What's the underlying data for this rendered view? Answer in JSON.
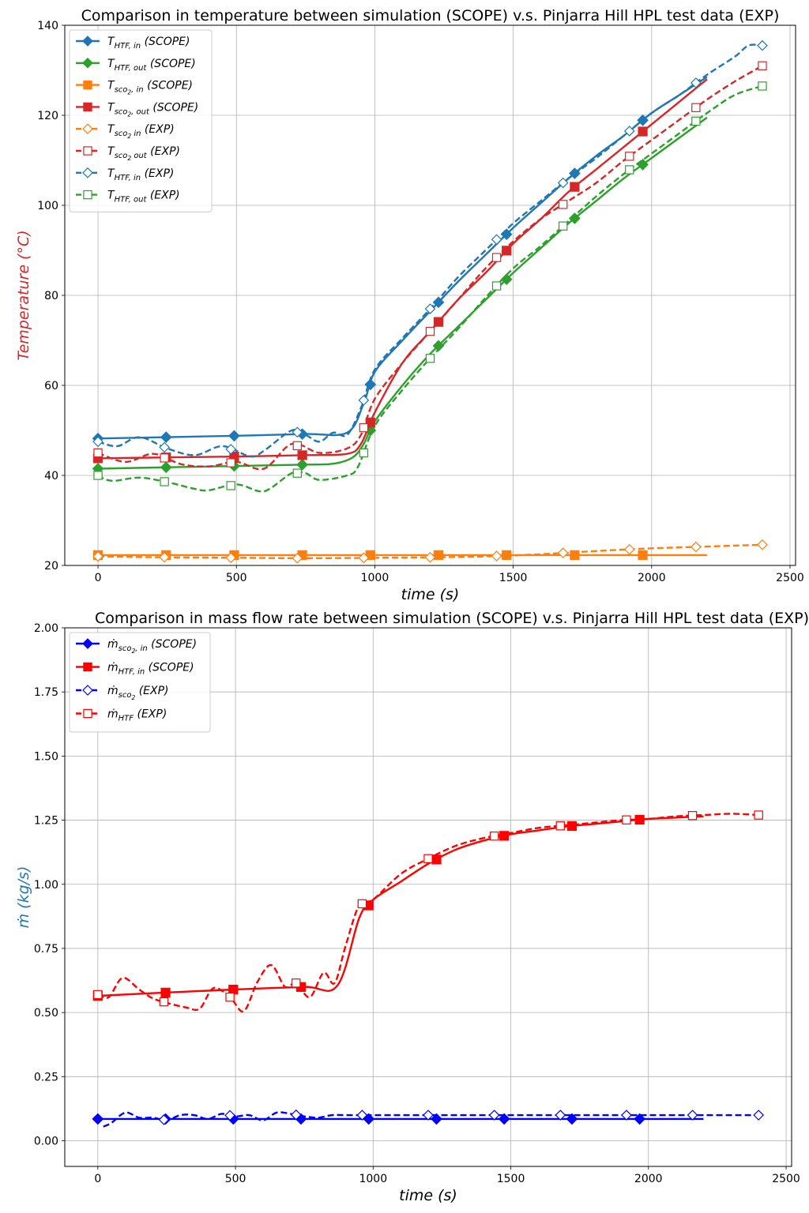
{
  "chart_data": [
    {
      "type": "line",
      "title": "Comparison in temperature between simulation (SCOPE) v.s. Pinjarra Hill HPL test data (EXP)",
      "xlabel": "time (s)",
      "ylabel": "Temperature (°C)",
      "xlim": [
        -120,
        2520
      ],
      "ylim": [
        20,
        140
      ],
      "xticks": [
        0,
        500,
        1000,
        1500,
        2000,
        2500
      ],
      "yticks": [
        20,
        40,
        60,
        80,
        100,
        120,
        140
      ],
      "grid": true,
      "legend_position": "upper-left",
      "series": [
        {
          "name": "T_HTF, in (SCOPE)",
          "label_main": "T",
          "label_sub": "HTF, in",
          "label_tail": " (SCOPE)",
          "color": "#1f77b4",
          "style": "solid",
          "marker": "diamond",
          "filled": true,
          "x": [
            0,
            250,
            500,
            750,
            900,
            960,
            1000,
            1100,
            1200,
            1300,
            1400,
            1500,
            1600,
            1700,
            1800,
            1900,
            2000,
            2100,
            2200
          ],
          "y": [
            48.2,
            48.5,
            48.8,
            49.2,
            49.5,
            56,
            63,
            70,
            76.5,
            83,
            89,
            95,
            100.5,
            106,
            111,
            115.5,
            120.5,
            124.5,
            128.5
          ]
        },
        {
          "name": "T_HTF, out (SCOPE)",
          "label_main": "T",
          "label_sub": "HTF, out",
          "label_tail": " (SCOPE)",
          "color": "#2ca02c",
          "style": "solid",
          "marker": "diamond",
          "filled": true,
          "x": [
            0,
            250,
            500,
            750,
            850,
            920,
            960,
            1000,
            1100,
            1200,
            1300,
            1400,
            1500,
            1600,
            1700,
            1800,
            1900,
            2000,
            2100,
            2200
          ],
          "y": [
            41.5,
            41.8,
            42.1,
            42.4,
            42.6,
            44,
            47,
            52,
            60,
            67,
            73,
            79,
            85,
            90.5,
            96,
            101,
            106,
            110.5,
            115,
            119.5
          ]
        },
        {
          "name": "T_sco2, in (SCOPE)",
          "label_main": "T",
          "label_sub": "sco",
          "label_subsub": "2",
          "label_sub2": ", in",
          "label_tail": " (SCOPE)",
          "color": "#ff7f0e",
          "style": "solid",
          "marker": "square",
          "filled": true,
          "x": [
            0,
            250,
            500,
            750,
            1000,
            1250,
            1500,
            1750,
            2000,
            2200
          ],
          "y": [
            22.3,
            22.3,
            22.3,
            22.3,
            22.3,
            22.3,
            22.3,
            22.3,
            22.3,
            22.3
          ]
        },
        {
          "name": "T_sco2, out (SCOPE)",
          "label_main": "T",
          "label_sub": "sco",
          "label_subsub": "2",
          "label_sub2": ", out",
          "label_tail": " (SCOPE)",
          "color": "#d62728",
          "style": "solid",
          "marker": "square",
          "filled": true,
          "x": [
            0,
            250,
            500,
            750,
            900,
            950,
            1000,
            1100,
            1200,
            1300,
            1400,
            1500,
            1600,
            1700,
            1800,
            1900,
            2000,
            2100,
            2200
          ],
          "y": [
            43.8,
            44,
            44.2,
            44.5,
            44.8,
            47,
            54,
            65,
            72,
            79,
            85,
            91.5,
            97,
            103,
            108,
            113,
            118,
            123,
            128
          ]
        },
        {
          "name": "T_sco2 in (EXP)",
          "label_main": "T",
          "label_sub": "sco",
          "label_subsub": "2",
          "label_sub2": " in",
          "label_tail": " (EXP)",
          "color": "#ff7f0e",
          "style": "dashed",
          "marker": "diamond",
          "filled": false,
          "x": [
            0,
            250,
            500,
            750,
            1000,
            1200,
            1400,
            1600,
            1800,
            2000,
            2200,
            2400
          ],
          "y": [
            22,
            21.8,
            21.7,
            21.6,
            21.7,
            21.8,
            22,
            22.5,
            23.2,
            23.8,
            24.2,
            24.6
          ]
        },
        {
          "name": "T_sco2 out (EXP)",
          "label_main": "T",
          "label_sub": "sco",
          "label_subsub": "2",
          "label_sub2": " out",
          "label_tail": " (EXP)",
          "color": "#d62728",
          "style": "dashed",
          "marker": "square",
          "filled": false,
          "x": [
            0,
            100,
            200,
            300,
            400,
            500,
            600,
            700,
            800,
            900,
            950,
            1000,
            1100,
            1200,
            1300,
            1400,
            1500,
            1600,
            1700,
            1800,
            1900,
            2000,
            2100,
            2200,
            2300,
            2400
          ],
          "y": [
            45,
            43,
            44.8,
            42.5,
            42,
            43,
            41.5,
            47,
            45,
            46,
            49,
            57,
            65,
            72,
            79,
            86,
            92,
            97,
            101,
            105,
            110,
            114.5,
            119,
            123.5,
            127.5,
            131
          ]
        },
        {
          "name": "T_HTF, in (EXP)",
          "label_main": "T",
          "label_sub": "HTF, in",
          "label_tail": " (EXP)",
          "color": "#1f77b4",
          "style": "dashed",
          "marker": "diamond",
          "filled": false,
          "x": [
            0,
            70,
            150,
            250,
            350,
            450,
            550,
            600,
            700,
            750,
            800,
            850,
            900,
            950,
            1000,
            1100,
            1200,
            1300,
            1400,
            1500,
            1600,
            1700,
            1800,
            1900,
            2000,
            2100,
            2200,
            2300,
            2350,
            2400
          ],
          "y": [
            47.5,
            46.5,
            48.5,
            46,
            44.5,
            46.5,
            44.2,
            45.5,
            50,
            49,
            47.5,
            49.5,
            49,
            55,
            63.5,
            70.5,
            77,
            84,
            90,
            96,
            101,
            106,
            110.5,
            115.5,
            120.5,
            124.5,
            129,
            133,
            135.5,
            135.5
          ]
        },
        {
          "name": "T_HTF, out (EXP)",
          "label_main": "T",
          "label_sub": "HTF, out",
          "label_tail": " (EXP)",
          "color": "#2ca02c",
          "style": "dashed",
          "marker": "square",
          "filled": false,
          "x": [
            0,
            50,
            150,
            250,
            350,
            400,
            500,
            580,
            620,
            700,
            750,
            800,
            900,
            940,
            1000,
            1100,
            1200,
            1300,
            1400,
            1500,
            1600,
            1700,
            1800,
            1900,
            2000,
            2100,
            2200,
            2300,
            2400
          ],
          "y": [
            40,
            38.8,
            39.5,
            38.5,
            37,
            36.7,
            38,
            36.5,
            37,
            40.5,
            40.5,
            39,
            40,
            42,
            51,
            59,
            66,
            72.5,
            79.5,
            86,
            91,
            96.5,
            102,
            107,
            111.5,
            116,
            120.5,
            124.5,
            126.5
          ]
        }
      ]
    },
    {
      "type": "line",
      "title": "Comparison in mass flow rate between simulation (SCOPE) v.s. Pinjarra Hill HPL test data (EXP)",
      "xlabel": "time (s)",
      "ylabel": "ṁ (kg/s)",
      "xlim": [
        -120,
        2520
      ],
      "ylim": [
        -0.1,
        2.0
      ],
      "xticks": [
        0,
        500,
        1000,
        1500,
        2000,
        2500
      ],
      "yticks": [
        "0.00",
        "0.25",
        "0.50",
        "0.75",
        "1.00",
        "1.25",
        "1.50",
        "1.75",
        "2.00"
      ],
      "grid": true,
      "legend_position": "upper-left",
      "series": [
        {
          "name": "ṁ_sco2, in (SCOPE)",
          "label_main": "ṁ",
          "label_sub": "sco",
          "label_subsub": "2",
          "label_sub2": ", in",
          "label_tail": " (SCOPE)",
          "color": "#0000ff",
          "style": "solid",
          "marker": "diamond",
          "filled": true,
          "x": [
            0,
            250,
            500,
            750,
            1000,
            1250,
            1500,
            1750,
            2000,
            2200
          ],
          "y": [
            0.085,
            0.085,
            0.085,
            0.085,
            0.085,
            0.085,
            0.085,
            0.085,
            0.085,
            0.085
          ]
        },
        {
          "name": "ṁ_HTF, in (SCOPE)",
          "label_main": "ṁ",
          "label_sub": "HTF, in",
          "label_tail": " (SCOPE)",
          "color": "#ff0000",
          "style": "solid",
          "marker": "square",
          "filled": true,
          "x": [
            0,
            250,
            500,
            750,
            870,
            950,
            1000,
            1100,
            1200,
            1300,
            1400,
            1500,
            1600,
            1700,
            1800,
            1900,
            2000,
            2100,
            2200
          ],
          "y": [
            0.565,
            0.578,
            0.59,
            0.6,
            0.605,
            0.87,
            0.94,
            1.01,
            1.08,
            1.135,
            1.17,
            1.195,
            1.21,
            1.225,
            1.235,
            1.245,
            1.255,
            1.26,
            1.265
          ]
        },
        {
          "name": "ṁ_sco2 (EXP)",
          "label_main": "ṁ",
          "label_sub": "sco",
          "label_subsub": "2",
          "label_tail": " (EXP)",
          "color": "#0000ff",
          "style": "dashed",
          "marker": "diamond",
          "filled": false,
          "x": [
            20,
            50,
            100,
            150,
            200,
            250,
            300,
            350,
            400,
            450,
            500,
            550,
            600,
            650,
            700,
            750,
            800,
            850,
            900,
            950,
            1000,
            1200,
            1400,
            1600,
            1800,
            2000,
            2200,
            2400
          ],
          "y": [
            0.055,
            0.07,
            0.11,
            0.09,
            0.09,
            0.08,
            0.1,
            0.1,
            0.085,
            0.105,
            0.095,
            0.1,
            0.08,
            0.11,
            0.105,
            0.095,
            0.09,
            0.1,
            0.1,
            0.1,
            0.1,
            0.1,
            0.1,
            0.1,
            0.1,
            0.1,
            0.1,
            0.1
          ]
        },
        {
          "name": "ṁ_HTF (EXP)",
          "label_main": "ṁ",
          "label_sub": "HTF",
          "label_tail": " (EXP)",
          "color": "#ff0000",
          "style": "dashed",
          "marker": "square",
          "filled": false,
          "x": [
            0,
            40,
            90,
            150,
            200,
            260,
            320,
            370,
            420,
            480,
            530,
            580,
            630,
            680,
            720,
            770,
            820,
            860,
            900,
            950,
            1000,
            1100,
            1200,
            1300,
            1400,
            1500,
            1600,
            1700,
            1800,
            1900,
            2000,
            2100,
            2200,
            2300,
            2400
          ],
          "y": [
            0.57,
            0.56,
            0.635,
            0.59,
            0.555,
            0.535,
            0.52,
            0.515,
            0.595,
            0.56,
            0.505,
            0.62,
            0.685,
            0.6,
            0.615,
            0.56,
            0.655,
            0.615,
            0.76,
            0.92,
            0.94,
            1.04,
            1.1,
            1.15,
            1.18,
            1.2,
            1.22,
            1.23,
            1.24,
            1.25,
            1.255,
            1.265,
            1.27,
            1.275,
            1.27
          ]
        }
      ]
    }
  ]
}
